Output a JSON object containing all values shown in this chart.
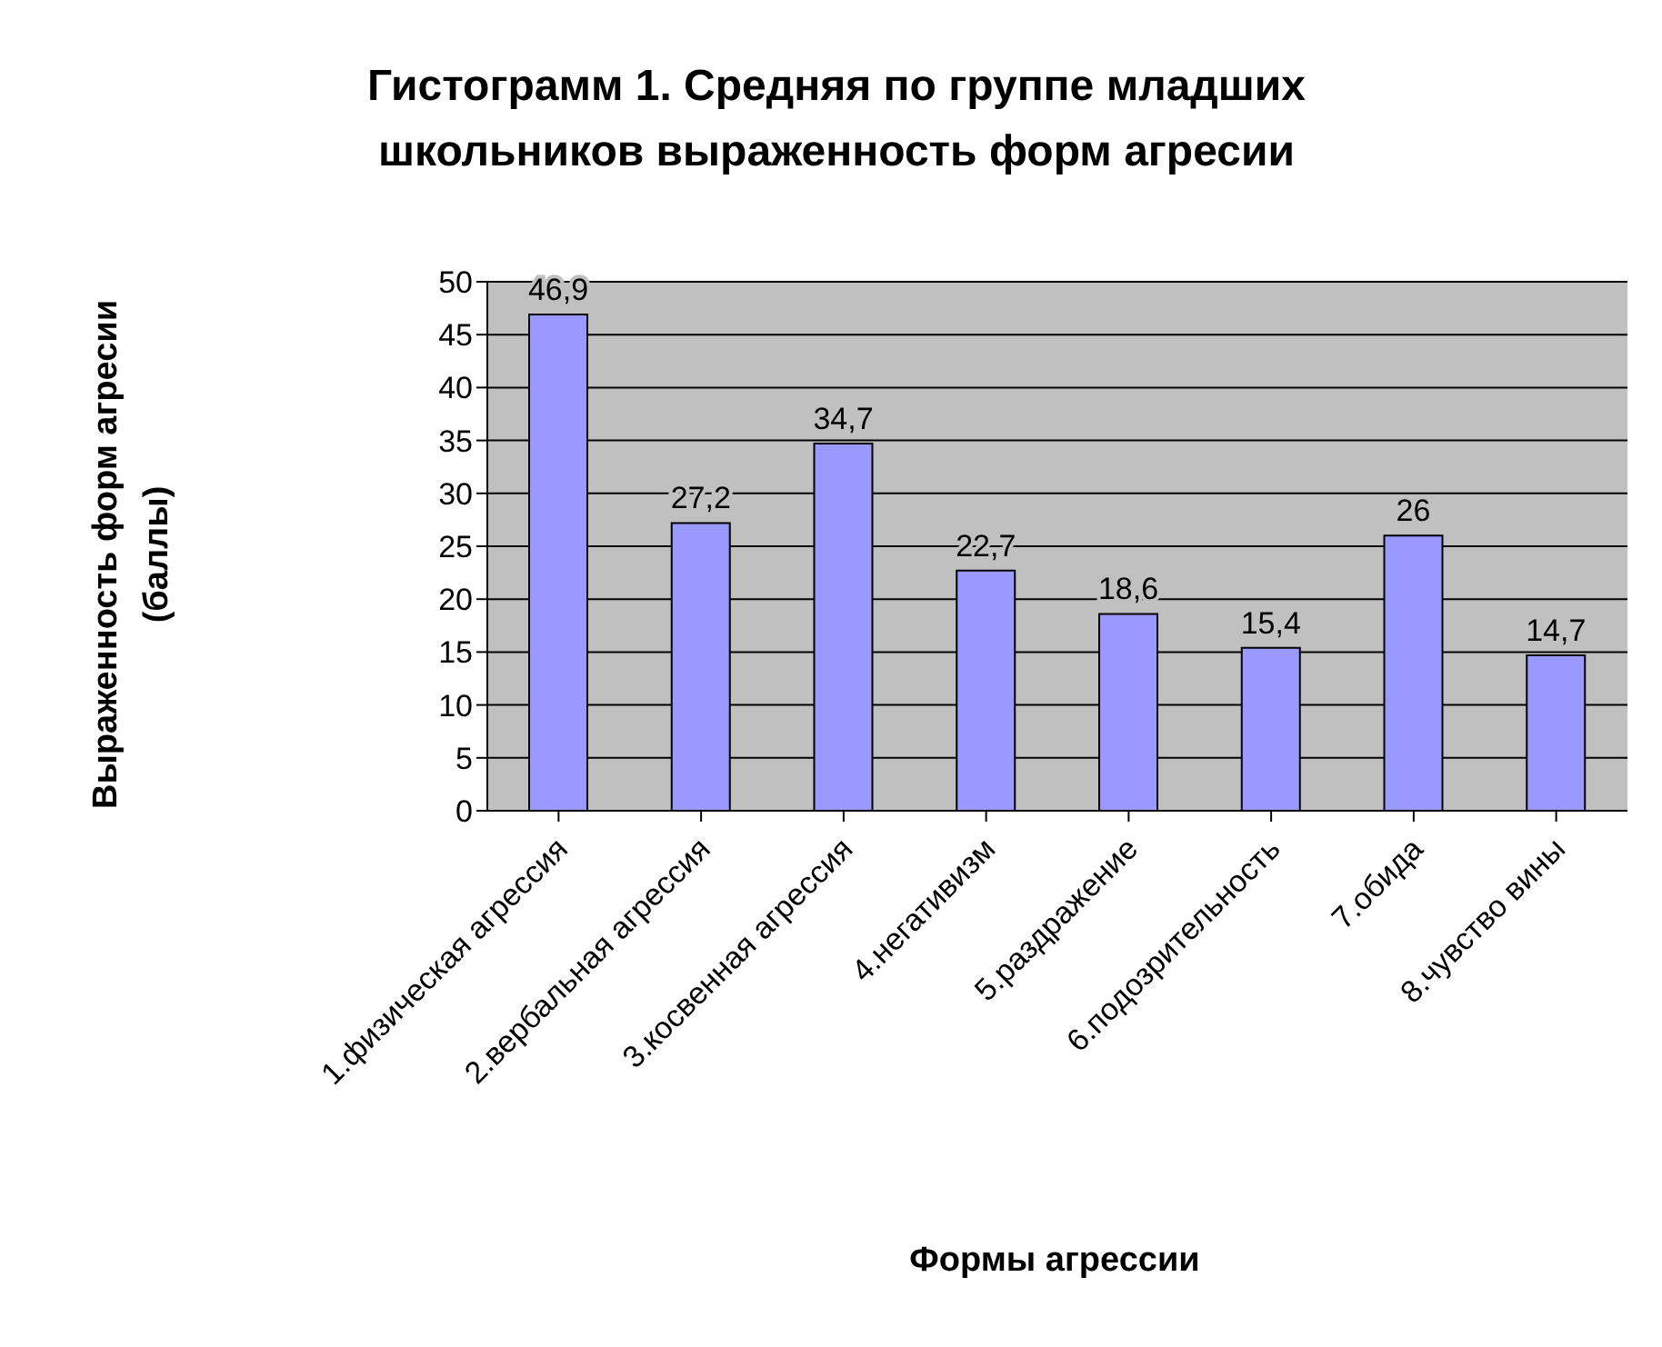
{
  "chart_data": {
    "type": "bar",
    "title": "Гистограмм 1. Средняя по группе младших школьников выраженность форм агресии",
    "xlabel": "Формы агрессии",
    "ylabel": "Выраженность форм агресии (баллы)",
    "categories": [
      "1.физическая агрессия",
      "2.вербальная агрессия",
      "3.косвенная агрессия",
      "4.негативизм",
      "5.раздражение",
      "6.подозрительность",
      "7.обида",
      "8.чувство вины"
    ],
    "values": [
      46.9,
      27.2,
      34.7,
      22.7,
      18.6,
      15.4,
      26,
      14.7
    ],
    "value_labels": [
      "46,9",
      "27,2",
      "34,7",
      "22,7",
      "18,6",
      "15,4",
      "26",
      "14,7"
    ],
    "color": "#9999ff",
    "ylim": [
      0,
      50
    ],
    "yticks": [
      0,
      5,
      10,
      15,
      20,
      25,
      30,
      35,
      40,
      45,
      50
    ],
    "grid": "y"
  }
}
